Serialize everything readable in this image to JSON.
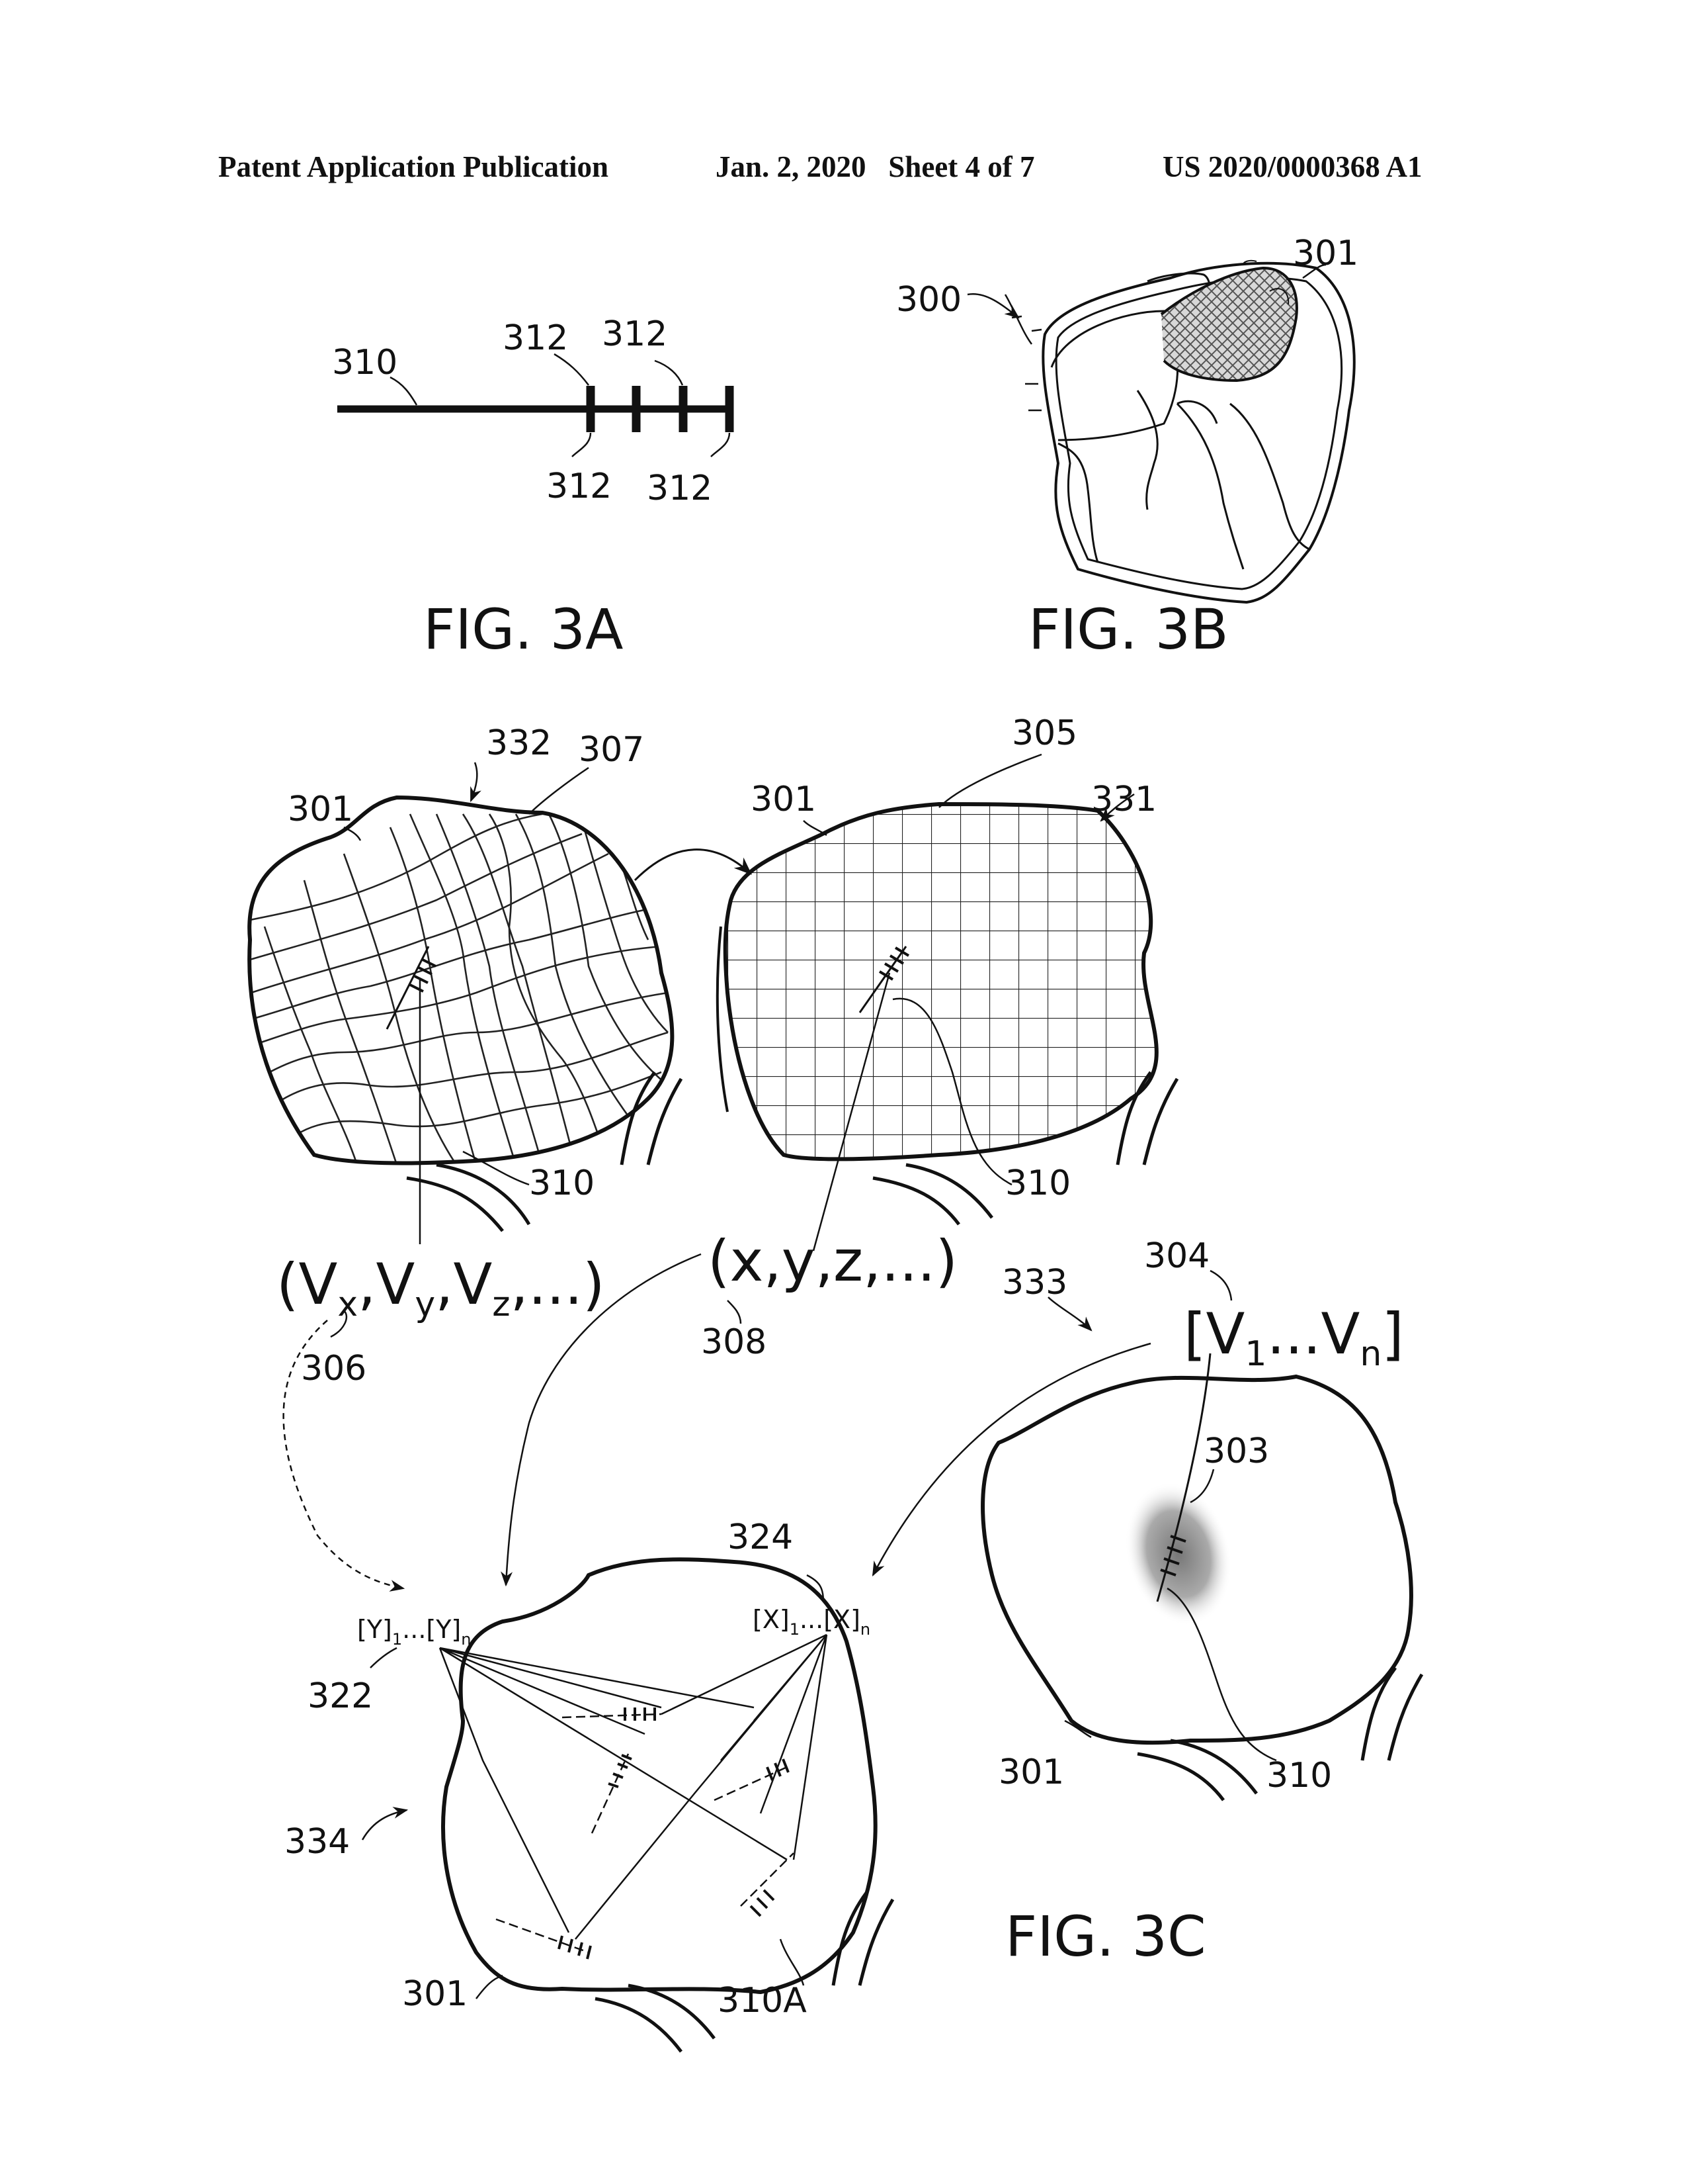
{
  "header": {
    "publication": "Patent Application Publication",
    "date_sheet": "Jan. 2, 2020   Sheet 4 of 7",
    "number": "US 2020/0000368 A1"
  },
  "figures": {
    "fig3a": "FIG. 3A",
    "fig3b": "FIG. 3B",
    "fig3c": "FIG. 3C"
  },
  "refs": {
    "r310_3a": "310",
    "r312_a": "312",
    "r312_b": "312",
    "r312_c": "312",
    "r312_d": "312",
    "r300": "300",
    "r301_3b": "301",
    "r332": "332",
    "r307": "307",
    "r301_left": "301",
    "r310_left": "310",
    "r305": "305",
    "r301_mid": "301",
    "r331": "331",
    "r310_mid": "310",
    "r306": "306",
    "r308": "308",
    "r333": "333",
    "r304": "304",
    "r303": "303",
    "r301_right": "301",
    "r310_right": "310",
    "r324": "324",
    "r322": "322",
    "r334": "334",
    "r301_bottom": "301",
    "r310a": "310A"
  },
  "vectors": {
    "v_open": "(V",
    "v_x": "x",
    "v_comma1": ",V",
    "v_y": "y",
    "v_comma2": ",V",
    "v_z": "z",
    "v_close": ",...)",
    "xyz": "(x,y,z,...)",
    "vn_open": "[V",
    "vn_1": "1",
    "vn_mid": "...V",
    "vn_n": "n",
    "vn_close": "]",
    "y_open": "[Y]",
    "y_1": "1",
    "y_mid": "...[Y]",
    "y_n": "n",
    "x_open": "[X]",
    "x_1": "1",
    "x_mid": "...[X]",
    "x_n": "n"
  }
}
